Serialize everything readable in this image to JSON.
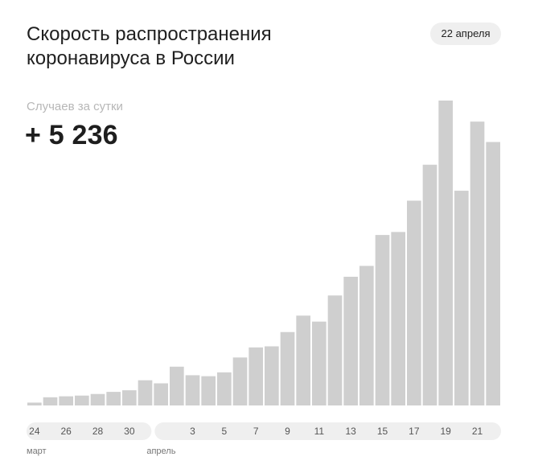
{
  "header": {
    "title": "Скорость распространения коронавируса в России",
    "date_badge": "22 апреля"
  },
  "stat": {
    "label": "Случаев за сутки",
    "value": "+ 5 236"
  },
  "colors": {
    "bar": "#cfcfcf",
    "axis_band": "#efefef",
    "text": "#222222",
    "muted": "#b7b7b7",
    "month_label": "#777777"
  },
  "chart_data": {
    "type": "bar",
    "categories": [
      "24",
      "25",
      "26",
      "27",
      "28",
      "29",
      "30",
      "31",
      "1",
      "2",
      "3",
      "4",
      "5",
      "6",
      "7",
      "8",
      "9",
      "10",
      "11",
      "12",
      "13",
      "14",
      "15",
      "16",
      "17",
      "18",
      "19",
      "20",
      "21",
      "22"
    ],
    "values": [
      57,
      163,
      182,
      196,
      228,
      270,
      302,
      501,
      440,
      771,
      601,
      582,
      658,
      954,
      1154,
      1175,
      1459,
      1786,
      1667,
      2186,
      2558,
      2774,
      3388,
      3448,
      4070,
      4785,
      6060,
      4268,
      5642,
      5236
    ],
    "tick_labels": [
      "24",
      "26",
      "28",
      "30",
      "3",
      "5",
      "7",
      "9",
      "11",
      "13",
      "15",
      "17",
      "19",
      "21"
    ],
    "month_labels": [
      "март",
      "апрель"
    ],
    "ylim": [
      0,
      6060
    ],
    "grid": false,
    "title": "",
    "xlabel": "",
    "ylabel": ""
  }
}
